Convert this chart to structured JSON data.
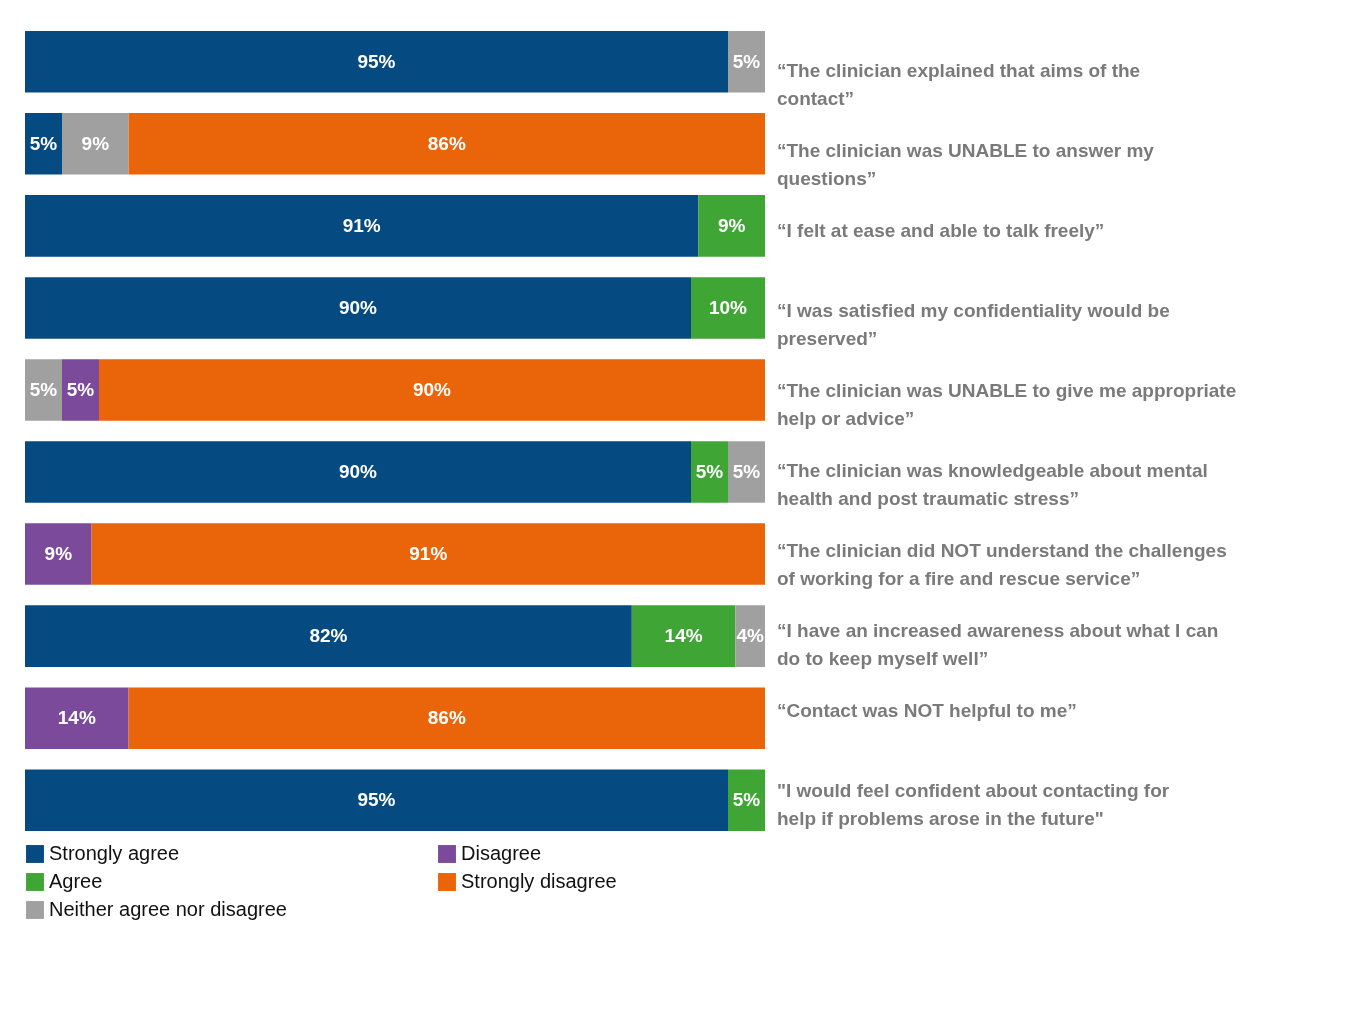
{
  "chart_data": {
    "type": "bar",
    "orientation": "horizontal",
    "stacked": true,
    "xlim": [
      0,
      100
    ],
    "legend": "bottom left",
    "categories": [
      "“The clinician explained that aims of the contact”",
      "“The clinician was UNABLE to answer my questions”",
      "“I felt at ease and able to talk freely”",
      "“I was satisfied my confidentiality would be preserved”",
      "“The clinician was UNABLE to give me appropriate help or advice”",
      "“The clinician was knowledgeable about mental health and post traumatic stress”",
      "“The clinician did NOT understand the challenges of working for a fire and rescue service”",
      "“I have an increased awareness about what I can do to keep myself well”",
      "“Contact was NOT helpful to me”",
      "\"I would feel confident about contacting for help if problems arose in the future\""
    ],
    "series": [
      {
        "name": "Strongly agree",
        "color": "#054a80",
        "values": [
          95,
          5,
          91,
          90,
          null,
          90,
          null,
          82,
          null,
          95
        ],
        "value_labels": [
          "95%",
          "5%",
          "91%",
          "90%",
          null,
          "90%",
          null,
          "82%",
          null,
          "95%"
        ]
      },
      {
        "name": "Agree",
        "color": "#3fa535",
        "values": [
          null,
          null,
          9,
          10,
          null,
          5,
          null,
          14,
          null,
          5
        ],
        "value_labels": [
          null,
          null,
          "9%",
          "10%",
          null,
          "5%",
          null,
          "14%",
          null,
          "5%"
        ]
      },
      {
        "name": "Neither agree nor disagree",
        "color": "#a0a0a0",
        "values": [
          5,
          9,
          null,
          null,
          5,
          5,
          null,
          4,
          null,
          null
        ],
        "value_labels": [
          "5%",
          "9%",
          null,
          null,
          "5%",
          "5%",
          null,
          "4%",
          null,
          null
        ]
      },
      {
        "name": "Disagree",
        "color": "#7b4a9a",
        "values": [
          null,
          null,
          null,
          null,
          5,
          null,
          9,
          null,
          14,
          null
        ],
        "value_labels": [
          null,
          null,
          null,
          null,
          "5%",
          null,
          "9%",
          null,
          "14%",
          null
        ]
      },
      {
        "name": "Strongly disagree",
        "color": "#ea6509",
        "values": [
          null,
          86,
          null,
          null,
          90,
          null,
          91,
          null,
          86,
          null
        ],
        "value_labels": [
          null,
          "86%",
          null,
          null,
          "90%",
          null,
          "91%",
          null,
          "86%",
          null
        ]
      }
    ]
  }
}
